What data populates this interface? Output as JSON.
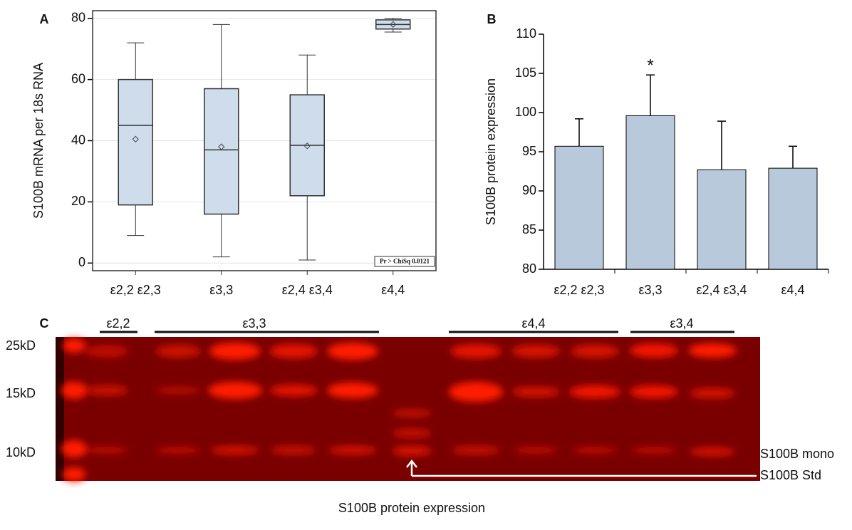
{
  "chart_data": [
    {
      "type": "box",
      "panel_label": "A",
      "y_label": "S100B mRNA per 18s RNA",
      "categories": [
        "ε2,2 ε2,3",
        "ε3,3",
        "ε2,4 ε3,4",
        "ε4,4"
      ],
      "min": [
        9,
        2,
        1,
        75.5
      ],
      "q1": [
        19,
        16,
        22,
        76.5
      ],
      "median": [
        45,
        37,
        38.5,
        78
      ],
      "q3": [
        60,
        57,
        55,
        79.5
      ],
      "max": [
        72,
        78,
        68,
        80
      ],
      "mean": [
        40.5,
        38,
        38.3,
        78
      ],
      "color": "#cfdcec",
      "ylim": [
        -2.5,
        82.5
      ],
      "yticks": [
        0,
        20,
        40,
        60,
        80
      ],
      "grid": true,
      "annotation": "Pr > ChiSq  0.0121"
    },
    {
      "type": "bar",
      "panel_label": "B",
      "y_label": "S100B protein expression",
      "categories": [
        "ε2,2 ε2,3",
        "ε3,3",
        "ε2,4 ε3,4",
        "ε4,4"
      ],
      "values": [
        95.7,
        99.6,
        92.7,
        92.9
      ],
      "errors": [
        3.5,
        5.2,
        6.2,
        2.8
      ],
      "color": "#b9c9dc",
      "ylim": [
        80,
        110
      ],
      "yticks": [
        80,
        85,
        90,
        95,
        100,
        105,
        110
      ],
      "annotation": "*"
    }
  ],
  "gel": {
    "panel_label": "C",
    "groups": [
      "ε2,2",
      "ε3,3",
      "ε4,4",
      "ε3,4"
    ],
    "markers": [
      "25kD",
      "15kD",
      "10kD"
    ],
    "band_labels": [
      "S100B mono",
      "S100B Std"
    ],
    "caption": "S100B protein expression"
  }
}
